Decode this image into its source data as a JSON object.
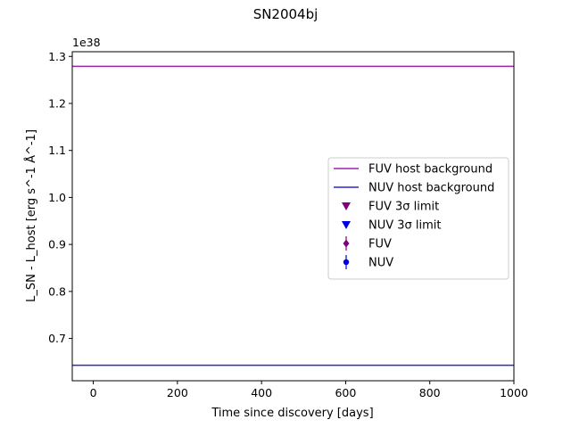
{
  "chart_data": {
    "type": "line",
    "title": "SN2004bj",
    "xlabel": "Time since discovery [days]",
    "ylabel": "L_SN - L_host [erg s^-1 Å^-1]",
    "y_offset_label": "1e38",
    "xlim": [
      -50,
      1000
    ],
    "ylim": [
      0.61,
      1.31
    ],
    "xticks": [
      0,
      200,
      400,
      600,
      800,
      1000
    ],
    "xtick_labels": [
      "0",
      "200",
      "400",
      "600",
      "800",
      "1000"
    ],
    "yticks": [
      0.7,
      0.8,
      0.9,
      1.0,
      1.1,
      1.2,
      1.3
    ],
    "ytick_labels": [
      "0.7",
      "0.8",
      "0.9",
      "1.0",
      "1.1",
      "1.2",
      "1.3"
    ],
    "grid": false,
    "legend_position": "center-right",
    "series": [
      {
        "name": "FUV host background",
        "kind": "hline",
        "y": 1.279,
        "color": "#a020b0"
      },
      {
        "name": "NUV host background",
        "kind": "hline",
        "y": 0.643,
        "color": "#2a2ad0"
      },
      {
        "name": "FUV 3σ limit",
        "kind": "marker",
        "marker": "triangle-down",
        "color": "#800080",
        "x": [],
        "y": []
      },
      {
        "name": "NUV 3σ limit",
        "kind": "marker",
        "marker": "triangle-down",
        "color": "#0000e0",
        "x": [],
        "y": []
      },
      {
        "name": "FUV",
        "kind": "errorbar",
        "marker": "diamond",
        "color": "#800080",
        "x": [],
        "y": []
      },
      {
        "name": "NUV",
        "kind": "errorbar",
        "marker": "circle",
        "color": "#0000e0",
        "x": [],
        "y": []
      }
    ]
  }
}
